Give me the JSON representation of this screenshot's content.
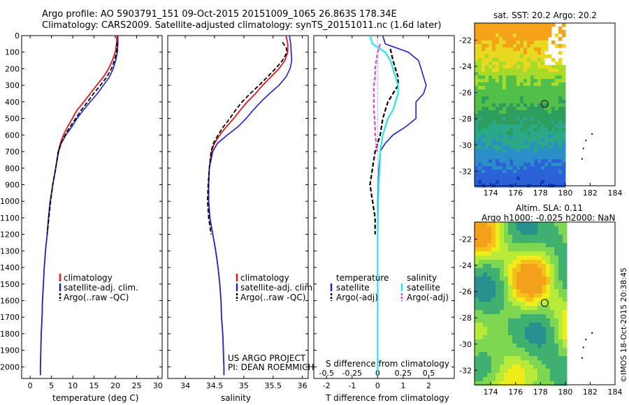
{
  "header": {
    "line1": "Argo profile: AO 5903791_151 09-Oct-2015 20151009_1065 26.863S 178.34E",
    "line2": "Climatology: CARS2009. Satellite-adjusted climatology: synTS_20151011.nc (1.6d later)"
  },
  "sst_map": {
    "title": "sat. SST: 20.2 Argo: 20.2"
  },
  "sla_map": {
    "title_line1": "Altim. SLA: 0.11",
    "title_line2": "Argo h1000: -0.025 h2000: NaN"
  },
  "credit": {
    "project_line1": "US ARGO PROJECT",
    "project_line2": "PI: DEAN ROEMMICH",
    "imos": "©IMOS 18-Oct-2015 20:38:45"
  },
  "colors": {
    "climatology": "#e8141c",
    "satellite": "#1f1fd6",
    "argo": "#000000",
    "sat_s": "#26e6e6",
    "argo_s": "#e040e0"
  },
  "chart_data": [
    {
      "type": "line",
      "name": "temperature",
      "xlabel": "temperature (deg C)",
      "ylabel": "",
      "xlim": [
        -2,
        31
      ],
      "ylim": [
        0,
        2070
      ],
      "xticks": [
        0,
        5,
        10,
        15,
        20,
        25,
        30
      ],
      "yticks": [
        0,
        100,
        200,
        300,
        400,
        500,
        600,
        700,
        800,
        900,
        1000,
        1100,
        1200,
        1300,
        1400,
        1500,
        1600,
        1700,
        1800,
        1900,
        2000
      ],
      "legend": [
        "climatology",
        "satellite-adj. clim.",
        "Argo(..raw -QC)"
      ],
      "series": [
        {
          "name": "climatology",
          "points": [
            [
              20.4,
              0
            ],
            [
              20.3,
              50
            ],
            [
              20.0,
              100
            ],
            [
              19.3,
              150
            ],
            [
              18.4,
              200
            ],
            [
              17.2,
              250
            ],
            [
              15.6,
              300
            ],
            [
              14.1,
              350
            ],
            [
              12.6,
              400
            ],
            [
              11.0,
              450
            ],
            [
              9.9,
              500
            ],
            [
              8.8,
              550
            ],
            [
              7.8,
              600
            ],
            [
              7.1,
              650
            ],
            [
              6.6,
              700
            ],
            [
              6.0,
              800
            ],
            [
              5.3,
              900
            ],
            [
              4.7,
              1000
            ],
            [
              4.3,
              1100
            ],
            [
              4.0,
              1200
            ],
            [
              3.6,
              1300
            ],
            [
              3.3,
              1400
            ],
            [
              3.1,
              1500
            ],
            [
              2.9,
              1600
            ],
            [
              2.8,
              1700
            ],
            [
              2.6,
              1800
            ],
            [
              2.5,
              1900
            ],
            [
              2.4,
              2000
            ],
            [
              2.4,
              2050
            ]
          ]
        },
        {
          "name": "satellite-adj. clim.",
          "points": [
            [
              20.6,
              0
            ],
            [
              20.6,
              50
            ],
            [
              20.5,
              100
            ],
            [
              20.1,
              150
            ],
            [
              19.5,
              200
            ],
            [
              18.6,
              250
            ],
            [
              17.2,
              300
            ],
            [
              15.8,
              350
            ],
            [
              14.1,
              400
            ],
            [
              12.5,
              450
            ],
            [
              11.0,
              500
            ],
            [
              9.8,
              550
            ],
            [
              8.4,
              600
            ],
            [
              7.3,
              650
            ],
            [
              6.7,
              700
            ],
            [
              6.0,
              800
            ],
            [
              5.3,
              900
            ],
            [
              4.7,
              1000
            ],
            [
              4.3,
              1100
            ],
            [
              4.0,
              1200
            ],
            [
              3.6,
              1300
            ],
            [
              3.3,
              1400
            ],
            [
              3.1,
              1500
            ],
            [
              2.9,
              1600
            ],
            [
              2.8,
              1700
            ],
            [
              2.6,
              1800
            ],
            [
              2.5,
              1900
            ],
            [
              2.4,
              2000
            ],
            [
              2.4,
              2050
            ]
          ]
        },
        {
          "name": "Argo(..raw -QC)",
          "points": [
            [
              20.4,
              40
            ],
            [
              20.3,
              100
            ],
            [
              19.8,
              150
            ],
            [
              19.1,
              200
            ],
            [
              18.0,
              250
            ],
            [
              16.5,
              300
            ],
            [
              14.9,
              350
            ],
            [
              13.5,
              400
            ],
            [
              12.0,
              450
            ],
            [
              10.7,
              500
            ],
            [
              9.4,
              550
            ],
            [
              8.2,
              600
            ],
            [
              7.3,
              650
            ],
            [
              6.6,
              700
            ],
            [
              6.0,
              800
            ],
            [
              5.3,
              900
            ],
            [
              4.8,
              1000
            ],
            [
              4.4,
              1100
            ],
            [
              4.0,
              1200
            ]
          ]
        }
      ]
    },
    {
      "type": "line",
      "name": "salinity",
      "xlabel": "salinity",
      "ylabel": "",
      "xlim": [
        33.7,
        36.1
      ],
      "ylim": [
        0,
        2070
      ],
      "xticks": [
        34,
        34.5,
        35,
        35.5,
        36
      ],
      "legend": [
        "climatology",
        "satellite-adj. clim.",
        "Argo(..raw -QC)"
      ],
      "series": [
        {
          "name": "climatology",
          "points": [
            [
              35.72,
              0
            ],
            [
              35.75,
              50
            ],
            [
              35.75,
              100
            ],
            [
              35.7,
              150
            ],
            [
              35.6,
              200
            ],
            [
              35.46,
              250
            ],
            [
              35.32,
              300
            ],
            [
              35.2,
              350
            ],
            [
              35.06,
              400
            ],
            [
              34.94,
              450
            ],
            [
              34.83,
              500
            ],
            [
              34.7,
              550
            ],
            [
              34.59,
              600
            ],
            [
              34.5,
              650
            ],
            [
              34.45,
              700
            ],
            [
              34.41,
              800
            ],
            [
              34.4,
              900
            ],
            [
              34.4,
              1000
            ],
            [
              34.42,
              1100
            ],
            [
              34.47,
              1200
            ],
            [
              34.52,
              1300
            ],
            [
              34.56,
              1400
            ],
            [
              34.59,
              1500
            ],
            [
              34.61,
              1600
            ],
            [
              34.62,
              1700
            ],
            [
              34.64,
              1800
            ],
            [
              34.65,
              1900
            ],
            [
              34.66,
              2000
            ],
            [
              34.66,
              2050
            ]
          ]
        },
        {
          "name": "satellite-adj. clim.",
          "points": [
            [
              35.78,
              0
            ],
            [
              35.8,
              50
            ],
            [
              35.81,
              100
            ],
            [
              35.82,
              150
            ],
            [
              35.79,
              200
            ],
            [
              35.72,
              250
            ],
            [
              35.6,
              300
            ],
            [
              35.44,
              350
            ],
            [
              35.29,
              400
            ],
            [
              35.16,
              450
            ],
            [
              35.04,
              500
            ],
            [
              34.9,
              550
            ],
            [
              34.72,
              600
            ],
            [
              34.55,
              650
            ],
            [
              34.47,
              700
            ],
            [
              34.41,
              800
            ],
            [
              34.4,
              900
            ],
            [
              34.4,
              1000
            ],
            [
              34.42,
              1100
            ],
            [
              34.47,
              1200
            ],
            [
              34.52,
              1300
            ],
            [
              34.56,
              1400
            ],
            [
              34.59,
              1500
            ],
            [
              34.61,
              1600
            ],
            [
              34.62,
              1700
            ],
            [
              34.64,
              1800
            ],
            [
              34.65,
              1900
            ],
            [
              34.66,
              2000
            ],
            [
              34.66,
              2050
            ]
          ]
        },
        {
          "name": "Argo(..raw -QC)",
          "points": [
            [
              35.66,
              40
            ],
            [
              35.72,
              70
            ],
            [
              35.74,
              100
            ],
            [
              35.66,
              150
            ],
            [
              35.54,
              200
            ],
            [
              35.4,
              250
            ],
            [
              35.26,
              300
            ],
            [
              35.11,
              350
            ],
            [
              34.97,
              400
            ],
            [
              34.86,
              450
            ],
            [
              34.76,
              500
            ],
            [
              34.65,
              550
            ],
            [
              34.56,
              600
            ],
            [
              34.48,
              650
            ],
            [
              34.44,
              700
            ],
            [
              34.41,
              800
            ],
            [
              34.39,
              900
            ],
            [
              34.38,
              1000
            ],
            [
              34.4,
              1100
            ],
            [
              34.44,
              1200
            ]
          ]
        }
      ]
    },
    {
      "type": "line",
      "name": "difference",
      "xlabel": "T difference from climatology",
      "top_label": "S difference from climatology",
      "xlim": [
        -2.5,
        3.0
      ],
      "ylim": [
        0,
        2070
      ],
      "xticks_T": [
        -2,
        -1,
        0,
        1,
        2
      ],
      "xticks_S": [
        "-0.5",
        "-0.25",
        "0",
        "0.25",
        "0.5"
      ],
      "legend_temperature": [
        "temperature",
        "satellite",
        "Argo(-adj)"
      ],
      "legend_salinity": [
        "salinity",
        "satellite",
        "Argo(-adj)"
      ],
      "series": [
        {
          "name": "temperature satellite",
          "points": [
            [
              0.2,
              0
            ],
            [
              0.3,
              50
            ],
            [
              1.2,
              100
            ],
            [
              1.6,
              150
            ],
            [
              1.7,
              200
            ],
            [
              1.8,
              250
            ],
            [
              1.9,
              300
            ],
            [
              1.8,
              350
            ],
            [
              1.5,
              400
            ],
            [
              1.5,
              450
            ],
            [
              1.5,
              500
            ],
            [
              1.1,
              550
            ],
            [
              0.6,
              600
            ],
            [
              0.3,
              650
            ],
            [
              0.1,
              700
            ],
            [
              0.05,
              800
            ],
            [
              0.02,
              900
            ],
            [
              0,
              1000
            ],
            [
              0,
              2050
            ]
          ]
        },
        {
          "name": "temperature Argo(-adj)",
          "points": [
            [
              0.5,
              80
            ],
            [
              0.6,
              150
            ],
            [
              0.7,
              200
            ],
            [
              0.8,
              250
            ],
            [
              0.8,
              300
            ],
            [
              0.6,
              350
            ],
            [
              0.4,
              400
            ],
            [
              0.3,
              450
            ],
            [
              0.2,
              500
            ],
            [
              0.1,
              600
            ],
            [
              -0.1,
              700
            ],
            [
              -0.2,
              800
            ],
            [
              -0.3,
              900
            ],
            [
              -0.2,
              1000
            ],
            [
              -0.1,
              1100
            ],
            [
              -0.1,
              1200
            ]
          ]
        },
        {
          "name": "salinity satellite",
          "points": [
            [
              -0.3,
              0
            ],
            [
              -0.2,
              50
            ],
            [
              0.3,
              100
            ],
            [
              0.5,
              150
            ],
            [
              0.6,
              200
            ],
            [
              0.7,
              250
            ],
            [
              0.8,
              300
            ],
            [
              0.8,
              350
            ],
            [
              0.7,
              400
            ],
            [
              0.6,
              450
            ],
            [
              0.4,
              500
            ],
            [
              0.3,
              550
            ],
            [
              0.2,
              600
            ],
            [
              0.15,
              650
            ],
            [
              0.1,
              700
            ],
            [
              0.08,
              800
            ],
            [
              0.04,
              900
            ],
            [
              0.02,
              1000
            ],
            [
              0.01,
              1100
            ],
            [
              0,
              1200
            ],
            [
              0,
              2050
            ]
          ]
        },
        {
          "name": "salinity Argo(-adj)",
          "points": [
            [
              0.1,
              50
            ],
            [
              0,
              100
            ],
            [
              -0.05,
              150
            ],
            [
              -0.1,
              200
            ],
            [
              -0.1,
              250
            ],
            [
              -0.15,
              300
            ],
            [
              -0.15,
              350
            ],
            [
              -0.15,
              400
            ],
            [
              -0.15,
              450
            ],
            [
              -0.12,
              500
            ],
            [
              -0.1,
              550
            ],
            [
              -0.1,
              600
            ],
            [
              -0.05,
              650
            ],
            [
              -0.03,
              700
            ]
          ]
        }
      ]
    },
    {
      "type": "heatmap",
      "name": "sst-map",
      "xlim": [
        172.7,
        184
      ],
      "ylim": [
        -33.1,
        -20.7
      ],
      "xticks": [
        174,
        176,
        178,
        180,
        182,
        184
      ],
      "yticks": [
        -22,
        -24,
        -26,
        -28,
        -30,
        -32
      ],
      "marker": [
        178.34,
        -26.863
      ]
    },
    {
      "type": "heatmap",
      "name": "sla-map",
      "xlim": [
        172.7,
        184
      ],
      "ylim": [
        -33.1,
        -20.7
      ],
      "xticks": [
        174,
        176,
        178,
        180,
        182,
        184
      ],
      "yticks": [
        -22,
        -24,
        -26,
        -28,
        -30,
        -32
      ],
      "marker": [
        178.34,
        -26.863
      ]
    }
  ]
}
